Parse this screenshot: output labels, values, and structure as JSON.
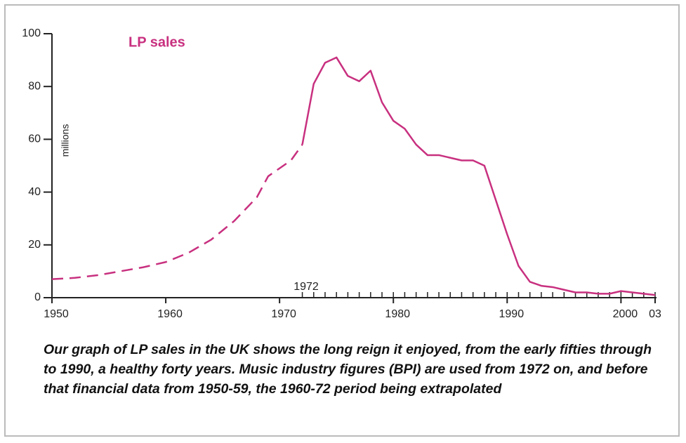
{
  "chart_data": {
    "type": "line",
    "title": "LP sales",
    "ylabel": "millions",
    "annotation": "1972",
    "caption": "Our graph of LP sales in the UK shows the long reign it enjoyed, from the early fifties through to 1990, a healthy forty years. Music industry figures (BPI) are used from 1972 on, and before that financial data from 1950-59, the 1960-72 period being extrapolated",
    "x": [
      1950,
      1952,
      1954,
      1956,
      1958,
      1960,
      1962,
      1964,
      1966,
      1968,
      1969,
      1970,
      1971,
      1972,
      1973,
      1974,
      1975,
      1976,
      1977,
      1978,
      1979,
      1980,
      1981,
      1982,
      1983,
      1984,
      1985,
      1986,
      1987,
      1988,
      1989,
      1990,
      1991,
      1992,
      1993,
      1994,
      1995,
      1996,
      1997,
      1998,
      1999,
      2000,
      2001,
      2002,
      2003
    ],
    "series": [
      {
        "color": "#c8307f",
        "dashed": true,
        "values": [
          7,
          7.5,
          8.5,
          10,
          11.5,
          13.5,
          17,
          22,
          29,
          38,
          46,
          49,
          52,
          58,
          null,
          null,
          null,
          null,
          null,
          null,
          null,
          null,
          null,
          null,
          null,
          null,
          null,
          null,
          null,
          null,
          null,
          null,
          null,
          null,
          null,
          null,
          null,
          null,
          null,
          null,
          null,
          null,
          null,
          null,
          null
        ]
      },
      {
        "color": "#c8307f",
        "dashed": false,
        "values": [
          null,
          null,
          null,
          null,
          null,
          null,
          null,
          null,
          null,
          null,
          null,
          null,
          null,
          58,
          81,
          89,
          91,
          84,
          82,
          86,
          74,
          67,
          64,
          58,
          54,
          54,
          53,
          52,
          52,
          50,
          37,
          24,
          12,
          6,
          4.5,
          4,
          3,
          2,
          2,
          1.5,
          1.5,
          2.5,
          2,
          1.5,
          1
        ]
      }
    ],
    "xlim": [
      1950,
      2003
    ],
    "ylim": [
      0,
      100
    ],
    "xticks": [
      1950,
      1960,
      1970,
      1980,
      1990,
      2000,
      {
        "value": 2003,
        "label": "03"
      }
    ],
    "minor_xticks": [
      1972,
      1973,
      1974,
      1975,
      1976,
      1977,
      1978,
      1979,
      1980,
      1981,
      1982,
      1983,
      1984,
      1985,
      1986,
      1987,
      1988,
      1989,
      1990,
      1991,
      1992,
      1993,
      1994,
      1995,
      1996,
      1997,
      1998,
      1999,
      2000,
      2001,
      2002,
      2003
    ],
    "yticks": [
      0,
      20,
      40,
      60,
      80,
      100
    ]
  }
}
